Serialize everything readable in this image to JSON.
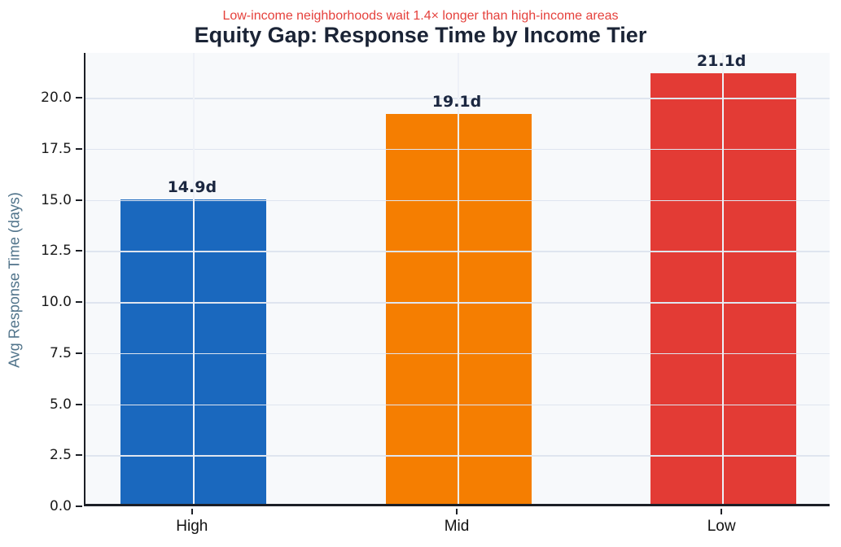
{
  "chart_data": {
    "type": "bar",
    "title": "Equity Gap: Response Time by Income Tier",
    "subtitle": "Low-income neighborhoods wait 1.4× longer than high-income areas",
    "categories": [
      "High",
      "Mid",
      "Low"
    ],
    "values": [
      14.9,
      19.1,
      21.1
    ],
    "bar_labels": [
      "14.9d",
      "19.1d",
      "21.1d"
    ],
    "bar_colors": [
      "#1a68be",
      "#f57e01",
      "#e33b35"
    ],
    "xlabel": "",
    "ylabel": "Avg Response Time (days)",
    "yticks": [
      0.0,
      2.5,
      5.0,
      7.5,
      10.0,
      12.5,
      15.0,
      17.5,
      20.0
    ],
    "ytick_labels": [
      "0.0",
      "2.5",
      "5.0",
      "7.5",
      "10.0",
      "12.5",
      "15.0",
      "17.5",
      "20.0"
    ],
    "ylim": [
      0,
      22.2
    ],
    "grid": true,
    "legend": null,
    "colors": {
      "title": "#1b2436",
      "subtitle": "#e5413c",
      "ylabel": "#50738a",
      "plot_background": "#f7f9fb",
      "figure_background": "#ffffff",
      "gridline": "#dfe5ef",
      "spine": "#1c1f26",
      "bar_value_label": "#1b2740"
    }
  }
}
